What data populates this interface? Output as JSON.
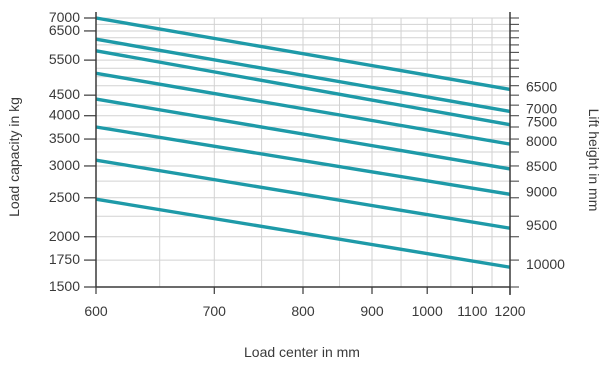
{
  "chart_data": {
    "type": "line",
    "xlabel": "Load center in mm",
    "ylabel_left": "Load capacity in kg",
    "ylabel_right": "Lift height in mm",
    "x_scale": "reciprocal",
    "x_ticks": [
      600,
      700,
      800,
      900,
      1000,
      1100,
      1200
    ],
    "xlim": [
      600,
      1200
    ],
    "y_scale": "log",
    "y_ticks": [
      1500,
      1750,
      2000,
      2500,
      3000,
      3500,
      4000,
      4500,
      5500,
      6500,
      7000
    ],
    "ylim": [
      1500,
      7000
    ],
    "grid": true,
    "right_axis_labels": [
      "6500",
      "7000",
      "7500",
      "8000",
      "8500",
      "9000",
      "9500",
      "10000"
    ],
    "series": [
      {
        "name": "6500",
        "x": [
          600,
          1200
        ],
        "y": [
          7000,
          4650
        ]
      },
      {
        "name": "7000",
        "x": [
          600,
          1200
        ],
        "y": [
          6200,
          4100
        ]
      },
      {
        "name": "7500",
        "x": [
          600,
          1200
        ],
        "y": [
          5800,
          3800
        ]
      },
      {
        "name": "8000",
        "x": [
          600,
          1200
        ],
        "y": [
          5100,
          3400
        ]
      },
      {
        "name": "8500",
        "x": [
          600,
          1200
        ],
        "y": [
          4400,
          2950
        ]
      },
      {
        "name": "9000",
        "x": [
          600,
          1200
        ],
        "y": [
          3750,
          2550
        ]
      },
      {
        "name": "9500",
        "x": [
          600,
          1200
        ],
        "y": [
          3100,
          2100
        ]
      },
      {
        "name": "10000",
        "x": [
          600,
          1200
        ],
        "y": [
          2480,
          1680
        ]
      }
    ],
    "colors": {
      "series": "#1e9aa8",
      "grid": "#d2d2d2",
      "axis": "#3a3a3a"
    }
  }
}
